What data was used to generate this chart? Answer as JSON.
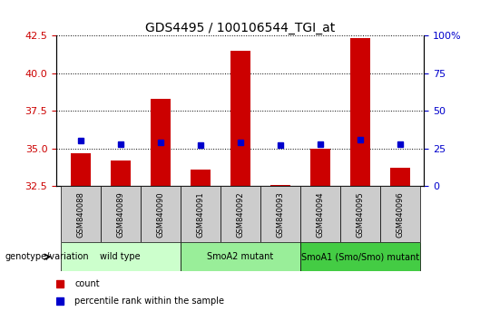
{
  "title": "GDS4495 / 100106544_TGI_at",
  "samples": [
    "GSM840088",
    "GSM840089",
    "GSM840090",
    "GSM840091",
    "GSM840092",
    "GSM840093",
    "GSM840094",
    "GSM840095",
    "GSM840096"
  ],
  "count_values": [
    34.7,
    34.2,
    38.3,
    33.6,
    41.5,
    32.6,
    35.0,
    42.3,
    33.7
  ],
  "percentile_values": [
    30,
    28,
    29,
    27,
    29,
    27,
    28,
    31,
    28
  ],
  "ylim_left": [
    32.5,
    42.5
  ],
  "ylim_right": [
    0,
    100
  ],
  "yticks_left": [
    32.5,
    35.0,
    37.5,
    40.0,
    42.5
  ],
  "yticks_right": [
    0,
    25,
    50,
    75,
    100
  ],
  "groups": [
    {
      "label": "wild type",
      "indices": [
        0,
        1,
        2
      ],
      "color": "#ccffcc"
    },
    {
      "label": "SmoA2 mutant",
      "indices": [
        3,
        4,
        5
      ],
      "color": "#99ee99"
    },
    {
      "label": "SmoA1 (Smo/Smo) mutant",
      "indices": [
        6,
        7,
        8
      ],
      "color": "#44cc44"
    }
  ],
  "bar_color": "#cc0000",
  "dot_color": "#0000cc",
  "bar_baseline": 32.5,
  "tick_color_left": "#cc0000",
  "tick_color_right": "#0000cc",
  "sample_box_color": "#cccccc",
  "legend_items": [
    {
      "label": "count",
      "color": "#cc0000"
    },
    {
      "label": "percentile rank within the sample",
      "color": "#0000cc"
    }
  ]
}
